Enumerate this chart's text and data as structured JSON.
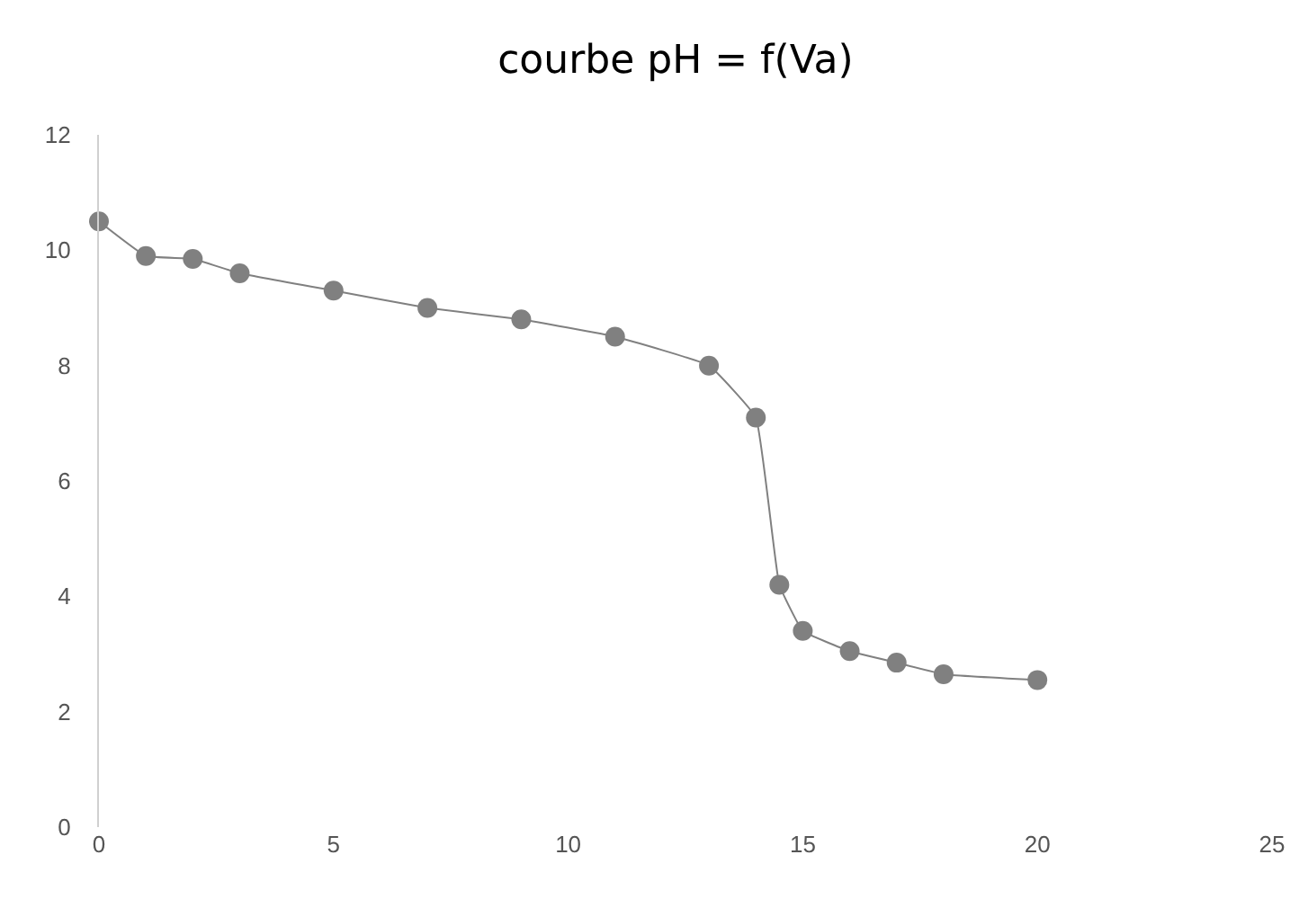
{
  "chart_data": {
    "type": "line",
    "title": "courbe pH = f(Va)",
    "x": [
      0,
      1,
      2,
      3,
      5,
      7,
      9,
      11,
      13,
      14,
      14.5,
      15,
      16,
      17,
      18,
      20
    ],
    "series": [
      {
        "color": "#808080",
        "values": [
          10.5,
          9.9,
          9.85,
          9.6,
          9.3,
          9.0,
          8.8,
          8.5,
          8.0,
          7.1,
          4.2,
          3.4,
          3.05,
          2.85,
          2.65,
          2.55
        ]
      }
    ],
    "xlim": [
      0,
      25
    ],
    "xticks": [
      0,
      5,
      10,
      15,
      20,
      25
    ],
    "ylim": [
      0,
      12
    ],
    "yticks": [
      0,
      2,
      4,
      6,
      8,
      10,
      12
    ],
    "grid": false,
    "marker": "circle",
    "line_style": "solid"
  }
}
